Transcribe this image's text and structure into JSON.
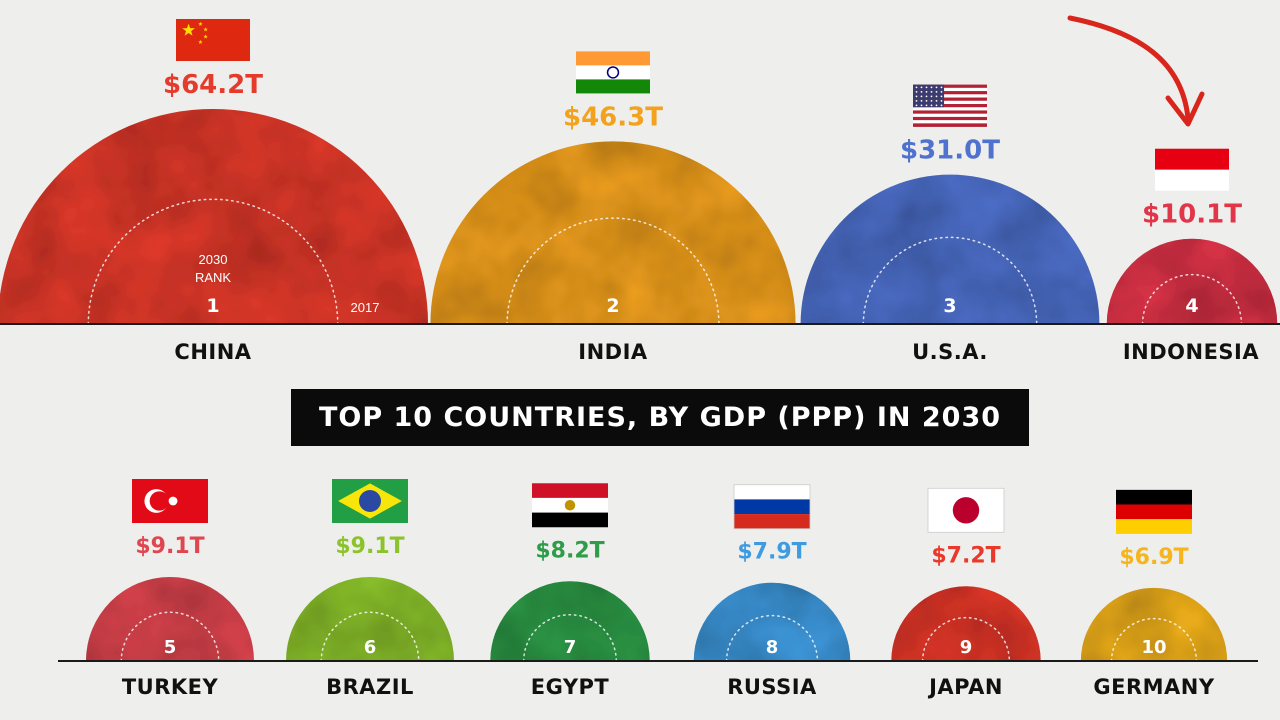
{
  "chart_data": {
    "type": "bubble",
    "title": "TOP 10 COUNTRIES, BY GDP (PPP) IN 2030",
    "unit": "T",
    "annotations": {
      "rank_caption_line1": "2030",
      "rank_caption_line2": "RANK",
      "reference_year": "2017"
    },
    "countries": [
      {
        "rank": "1",
        "name": "CHINA",
        "value": 64.2,
        "value_label": "$64.2T",
        "color": "#e63b2c",
        "flag": "china-flag"
      },
      {
        "rank": "2",
        "name": "INDIA",
        "value": 46.3,
        "value_label": "$46.3T",
        "color": "#f3a21e",
        "flag": "india-flag"
      },
      {
        "rank": "3",
        "name": "U.S.A.",
        "value": 31.0,
        "value_label": "$31.0T",
        "color": "#4f72cf",
        "flag": "usa-flag"
      },
      {
        "rank": "4",
        "name": "INDONESIA",
        "value": 10.1,
        "value_label": "$10.1T",
        "color": "#e2354a",
        "flag": "indonesia-flag"
      },
      {
        "rank": "5",
        "name": "TURKEY",
        "value": 9.1,
        "value_label": "$9.1T",
        "color": "#e04650",
        "flag": "turkey-flag"
      },
      {
        "rank": "6",
        "name": "BRAZIL",
        "value": 9.1,
        "value_label": "$9.1T",
        "color": "#8cc32c",
        "flag": "brazil-flag"
      },
      {
        "rank": "7",
        "name": "EGYPT",
        "value": 8.2,
        "value_label": "$8.2T",
        "color": "#2e9c48",
        "flag": "egypt-flag"
      },
      {
        "rank": "8",
        "name": "RUSSIA",
        "value": 7.9,
        "value_label": "$7.9T",
        "color": "#3f9be0",
        "flag": "russia-flag"
      },
      {
        "rank": "9",
        "name": "JAPAN",
        "value": 7.2,
        "value_label": "$7.2T",
        "color": "#e8392a",
        "flag": "japan-flag"
      },
      {
        "rank": "10",
        "name": "GERMANY",
        "value": 6.9,
        "value_label": "$6.9T",
        "color": "#f6b51c",
        "flag": "germany-flag"
      }
    ]
  }
}
